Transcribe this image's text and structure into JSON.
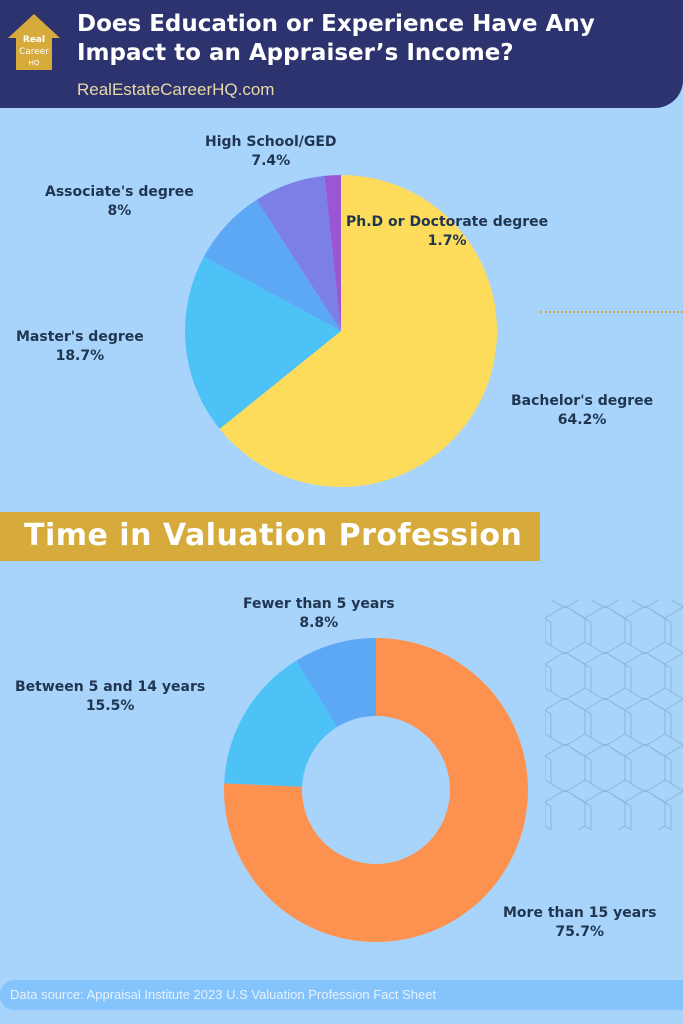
{
  "header": {
    "title": "Does Education or Experience Have Any Impact to an Appraiser’s Income?",
    "site": "RealEstateCareerHQ.com",
    "logo_text": "Real Estate Career HQ"
  },
  "section_title": "Time in Valuation Profession",
  "footer": {
    "source": "Data source: Appraisal Institute 2023 U.S Valuation Profession Fact Sheet"
  },
  "chart_data": [
    {
      "type": "pie",
      "unit": "%",
      "slices": [
        {
          "label": "Bachelor's degree",
          "value": 64.2,
          "value_label": "64.2%",
          "color": "#fddc5c"
        },
        {
          "label": "Master's degree",
          "value": 18.7,
          "value_label": "18.7%",
          "color": "#4cc2f7"
        },
        {
          "label": "Associate's degree",
          "value": 8,
          "value_label": "8%",
          "color": "#5ca8f5"
        },
        {
          "label": "High School/GED",
          "value": 7.4,
          "value_label": "7.4%",
          "color": "#7c80e6"
        },
        {
          "label": "Ph.D or Doctorate degree",
          "value": 1.7,
          "value_label": "1.7%",
          "color": "#9b57d3"
        }
      ]
    },
    {
      "type": "donut",
      "unit": "%",
      "slices": [
        {
          "label": "More than 15 years",
          "value": 75.7,
          "value_label": "75.7%",
          "color": "#fd9250"
        },
        {
          "label": "Between 5 and 14 years",
          "value": 15.5,
          "value_label": "15.5%",
          "color": "#4cc2f7"
        },
        {
          "label": "Fewer than 5 years",
          "value": 8.8,
          "value_label": "8.8%",
          "color": "#5ca8f5"
        }
      ]
    }
  ]
}
